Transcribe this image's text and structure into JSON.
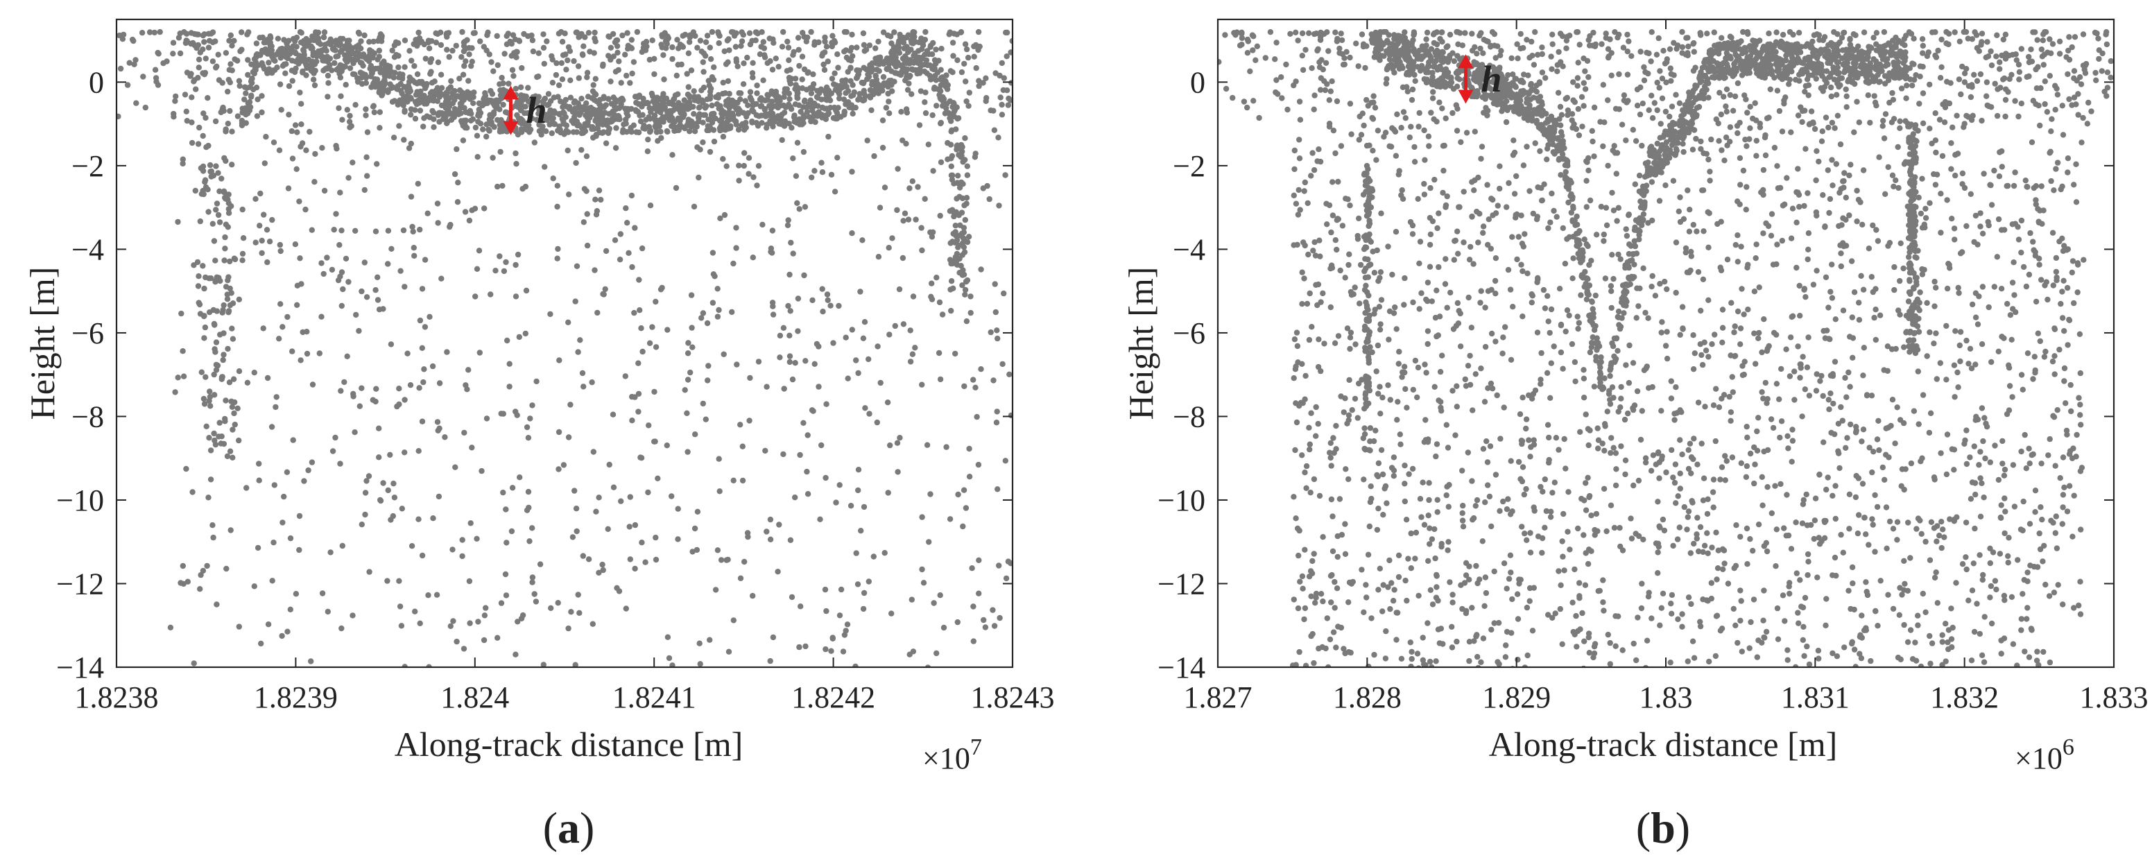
{
  "chart_data": [
    {
      "id": "a",
      "type": "scatter",
      "panel_label": "(a)",
      "xlabel": "Along-track distance [m]",
      "ylabel": "Height [m]",
      "xlim": [
        1.8238,
        1.8243
      ],
      "ylim": [
        -14,
        1.5
      ],
      "x_multiplier": "×10",
      "x_exponent": "7",
      "xticks": [
        1.8238,
        1.8239,
        1.824,
        1.8241,
        1.8242,
        1.8243
      ],
      "xtick_labels": [
        "1.8238",
        "1.8239",
        "1.824",
        "1.8241",
        "1.8242",
        "1.8243"
      ],
      "yticks": [
        0,
        -2,
        -4,
        -6,
        -8,
        -10,
        -12,
        -14
      ],
      "ytick_labels": [
        "0",
        "−2",
        "−4",
        "−6",
        "−8",
        "−10",
        "−12",
        "−14"
      ],
      "grid": false,
      "point_color": "#7a7a7a",
      "surface_profile": {
        "description": "dense surface band",
        "x": [
          1.82387,
          1.82388,
          1.82392,
          1.82394,
          1.82396,
          1.824,
          1.82405,
          1.8241,
          1.82415,
          1.8242,
          1.82423,
          1.82425,
          1.82426,
          1.82427
        ],
        "y": [
          -1.0,
          0.6,
          0.7,
          0.4,
          -0.3,
          -0.7,
          -0.8,
          -0.75,
          -0.7,
          -0.5,
          0.3,
          0.6,
          0.0,
          -1.3
        ]
      },
      "annotation": {
        "text": "h",
        "x": 1.82402,
        "y_top": -0.15,
        "y_bottom": -1.2,
        "color": "#e41a1c"
      }
    },
    {
      "id": "b",
      "type": "scatter",
      "panel_label": "(b)",
      "xlabel": "Along-track distance [m]",
      "ylabel": "Height [m]",
      "xlim": [
        1.827,
        1.833
      ],
      "ylim": [
        -14,
        1.5
      ],
      "x_multiplier": "×10",
      "x_exponent": "6",
      "xticks": [
        1.827,
        1.828,
        1.829,
        1.83,
        1.831,
        1.832,
        1.833
      ],
      "xtick_labels": [
        "1.827",
        "1.828",
        "1.829",
        "1.83",
        "1.831",
        "1.832",
        "1.833"
      ],
      "yticks": [
        0,
        -2,
        -4,
        -6,
        -8,
        -10,
        -12,
        -14
      ],
      "ytick_labels": [
        "0",
        "−2",
        "−4",
        "−6",
        "−8",
        "−10",
        "−12",
        "−14"
      ],
      "grid": false,
      "point_color": "#7a7a7a",
      "surface_profile": {
        "description": "dense surface band with trough",
        "x": [
          1.828,
          1.82805,
          1.8282,
          1.8285,
          1.8288,
          1.8291,
          1.8293,
          1.8295,
          1.8296,
          1.8297,
          1.8299,
          1.8301,
          1.8302,
          1.8303,
          1.8305,
          1.8308,
          1.8311,
          1.8314,
          1.8316,
          1.8317
        ],
        "y": [
          -8.0,
          0.8,
          0.7,
          0.3,
          0.0,
          -0.5,
          -1.5,
          -5.5,
          -7.8,
          -5.5,
          -2.0,
          -1.2,
          -0.5,
          0.5,
          0.6,
          0.5,
          0.5,
          0.4,
          0.6,
          -6.0
        ]
      },
      "annotation": {
        "text": "h",
        "x": 1.82866,
        "y_top": 0.6,
        "y_bottom": -0.45,
        "color": "#e41a1c"
      }
    }
  ]
}
